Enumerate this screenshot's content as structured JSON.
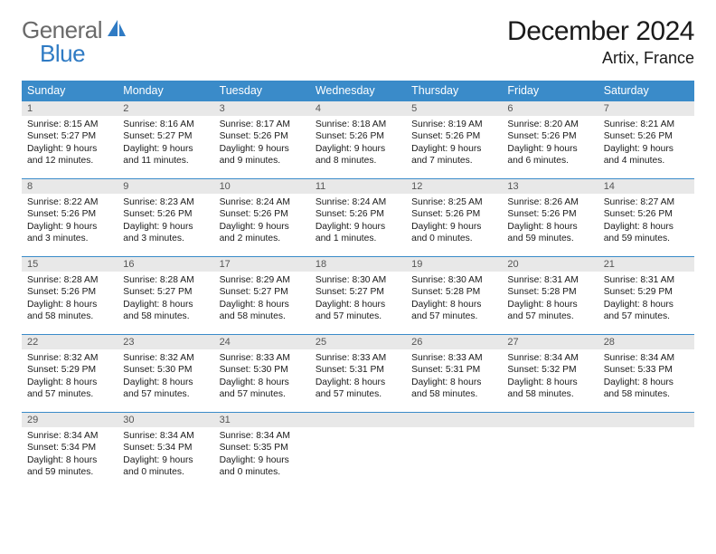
{
  "brand": {
    "part1": "General",
    "part2": "Blue"
  },
  "title": "December 2024",
  "location": "Artix, France",
  "colors": {
    "header_bg": "#3a8bc9",
    "header_text": "#ffffff",
    "daynum_bg": "#e8e8e8",
    "rule": "#3a8bc9",
    "logo_gray": "#6a6a6a",
    "logo_blue": "#2f7bc4"
  },
  "day_headers": [
    "Sunday",
    "Monday",
    "Tuesday",
    "Wednesday",
    "Thursday",
    "Friday",
    "Saturday"
  ],
  "weeks": [
    [
      {
        "n": "1",
        "sr": "8:15 AM",
        "ss": "5:27 PM",
        "dh": "9",
        "dm": "12"
      },
      {
        "n": "2",
        "sr": "8:16 AM",
        "ss": "5:27 PM",
        "dh": "9",
        "dm": "11"
      },
      {
        "n": "3",
        "sr": "8:17 AM",
        "ss": "5:26 PM",
        "dh": "9",
        "dm": "9"
      },
      {
        "n": "4",
        "sr": "8:18 AM",
        "ss": "5:26 PM",
        "dh": "9",
        "dm": "8"
      },
      {
        "n": "5",
        "sr": "8:19 AM",
        "ss": "5:26 PM",
        "dh": "9",
        "dm": "7"
      },
      {
        "n": "6",
        "sr": "8:20 AM",
        "ss": "5:26 PM",
        "dh": "9",
        "dm": "6"
      },
      {
        "n": "7",
        "sr": "8:21 AM",
        "ss": "5:26 PM",
        "dh": "9",
        "dm": "4"
      }
    ],
    [
      {
        "n": "8",
        "sr": "8:22 AM",
        "ss": "5:26 PM",
        "dh": "9",
        "dm": "3"
      },
      {
        "n": "9",
        "sr": "8:23 AM",
        "ss": "5:26 PM",
        "dh": "9",
        "dm": "3"
      },
      {
        "n": "10",
        "sr": "8:24 AM",
        "ss": "5:26 PM",
        "dh": "9",
        "dm": "2"
      },
      {
        "n": "11",
        "sr": "8:24 AM",
        "ss": "5:26 PM",
        "dh": "9",
        "dm": "1"
      },
      {
        "n": "12",
        "sr": "8:25 AM",
        "ss": "5:26 PM",
        "dh": "9",
        "dm": "0"
      },
      {
        "n": "13",
        "sr": "8:26 AM",
        "ss": "5:26 PM",
        "dh": "8",
        "dm": "59"
      },
      {
        "n": "14",
        "sr": "8:27 AM",
        "ss": "5:26 PM",
        "dh": "8",
        "dm": "59"
      }
    ],
    [
      {
        "n": "15",
        "sr": "8:28 AM",
        "ss": "5:26 PM",
        "dh": "8",
        "dm": "58"
      },
      {
        "n": "16",
        "sr": "8:28 AM",
        "ss": "5:27 PM",
        "dh": "8",
        "dm": "58"
      },
      {
        "n": "17",
        "sr": "8:29 AM",
        "ss": "5:27 PM",
        "dh": "8",
        "dm": "58"
      },
      {
        "n": "18",
        "sr": "8:30 AM",
        "ss": "5:27 PM",
        "dh": "8",
        "dm": "57"
      },
      {
        "n": "19",
        "sr": "8:30 AM",
        "ss": "5:28 PM",
        "dh": "8",
        "dm": "57"
      },
      {
        "n": "20",
        "sr": "8:31 AM",
        "ss": "5:28 PM",
        "dh": "8",
        "dm": "57"
      },
      {
        "n": "21",
        "sr": "8:31 AM",
        "ss": "5:29 PM",
        "dh": "8",
        "dm": "57"
      }
    ],
    [
      {
        "n": "22",
        "sr": "8:32 AM",
        "ss": "5:29 PM",
        "dh": "8",
        "dm": "57"
      },
      {
        "n": "23",
        "sr": "8:32 AM",
        "ss": "5:30 PM",
        "dh": "8",
        "dm": "57"
      },
      {
        "n": "24",
        "sr": "8:33 AM",
        "ss": "5:30 PM",
        "dh": "8",
        "dm": "57"
      },
      {
        "n": "25",
        "sr": "8:33 AM",
        "ss": "5:31 PM",
        "dh": "8",
        "dm": "57"
      },
      {
        "n": "26",
        "sr": "8:33 AM",
        "ss": "5:31 PM",
        "dh": "8",
        "dm": "58"
      },
      {
        "n": "27",
        "sr": "8:34 AM",
        "ss": "5:32 PM",
        "dh": "8",
        "dm": "58"
      },
      {
        "n": "28",
        "sr": "8:34 AM",
        "ss": "5:33 PM",
        "dh": "8",
        "dm": "58"
      }
    ],
    [
      {
        "n": "29",
        "sr": "8:34 AM",
        "ss": "5:34 PM",
        "dh": "8",
        "dm": "59"
      },
      {
        "n": "30",
        "sr": "8:34 AM",
        "ss": "5:34 PM",
        "dh": "9",
        "dm": "0"
      },
      {
        "n": "31",
        "sr": "8:34 AM",
        "ss": "5:35 PM",
        "dh": "9",
        "dm": "0"
      },
      null,
      null,
      null,
      null
    ]
  ],
  "labels": {
    "sunrise_prefix": "Sunrise: ",
    "sunset_prefix": "Sunset: ",
    "daylight_prefix": "Daylight: ",
    "hours_word": " hours",
    "and_word": "and ",
    "minutes_word": " minutes."
  }
}
